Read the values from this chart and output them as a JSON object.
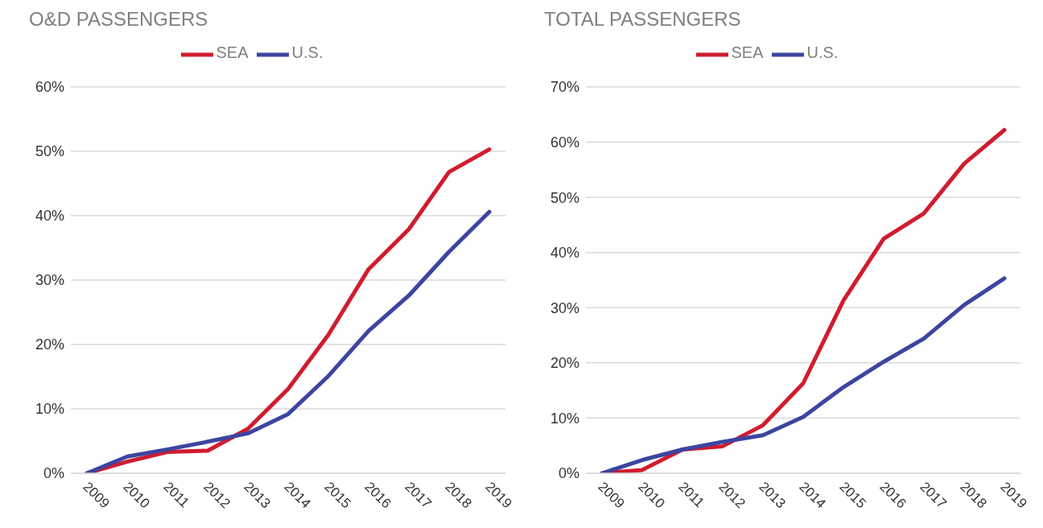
{
  "chart_data": [
    {
      "type": "line",
      "title": "O&D PASSENGERS",
      "categories": [
        "2009",
        "2010",
        "2011",
        "2012",
        "2013",
        "2014",
        "2015",
        "2016",
        "2017",
        "2018",
        "2019"
      ],
      "series": [
        {
          "name": "SEA",
          "color": "#d01c2e",
          "values": [
            0,
            1.8,
            3.3,
            3.5,
            6.9,
            13.1,
            21.5,
            31.7,
            37.9,
            46.8,
            50.3
          ]
        },
        {
          "name": "U.S.",
          "color": "#3c45a0",
          "values": [
            0,
            2.6,
            3.7,
            4.9,
            6.2,
            9.2,
            15.1,
            22.1,
            27.6,
            34.4,
            40.6
          ]
        }
      ],
      "ylim": [
        0,
        60
      ],
      "yticks": [
        {
          "value": 0,
          "label": "0%"
        },
        {
          "value": 10,
          "label": "10%"
        },
        {
          "value": 20,
          "label": "20%"
        },
        {
          "value": 30,
          "label": "30%"
        },
        {
          "value": 40,
          "label": "40%"
        },
        {
          "value": 50,
          "label": "50%"
        },
        {
          "value": 60,
          "label": "60%"
        }
      ],
      "grid": "y",
      "legend": "top"
    },
    {
      "type": "line",
      "title": "TOTAL PASSENGERS",
      "categories": [
        "2009",
        "2010",
        "2011",
        "2012",
        "2013",
        "2014",
        "2015",
        "2016",
        "2017",
        "2018",
        "2019"
      ],
      "series": [
        {
          "name": "SEA",
          "color": "#d01c2e",
          "values": [
            0,
            0.6,
            4.3,
            4.9,
            8.7,
            16.3,
            31.3,
            42.5,
            47.1,
            56.1,
            62.2
          ]
        },
        {
          "name": "U.S.",
          "color": "#3c45a0",
          "values": [
            0,
            2.4,
            4.3,
            5.7,
            6.9,
            10.2,
            15.6,
            20.2,
            24.4,
            30.5,
            35.3
          ]
        }
      ],
      "ylim": [
        0,
        70
      ],
      "yticks": [
        {
          "value": 0,
          "label": "0%"
        },
        {
          "value": 10,
          "label": "10%"
        },
        {
          "value": 20,
          "label": "20%"
        },
        {
          "value": 30,
          "label": "30%"
        },
        {
          "value": 40,
          "label": "40%"
        },
        {
          "value": 50,
          "label": "50%"
        },
        {
          "value": 60,
          "label": "60%"
        },
        {
          "value": 70,
          "label": "70%"
        }
      ],
      "grid": "y",
      "legend": "top"
    }
  ]
}
